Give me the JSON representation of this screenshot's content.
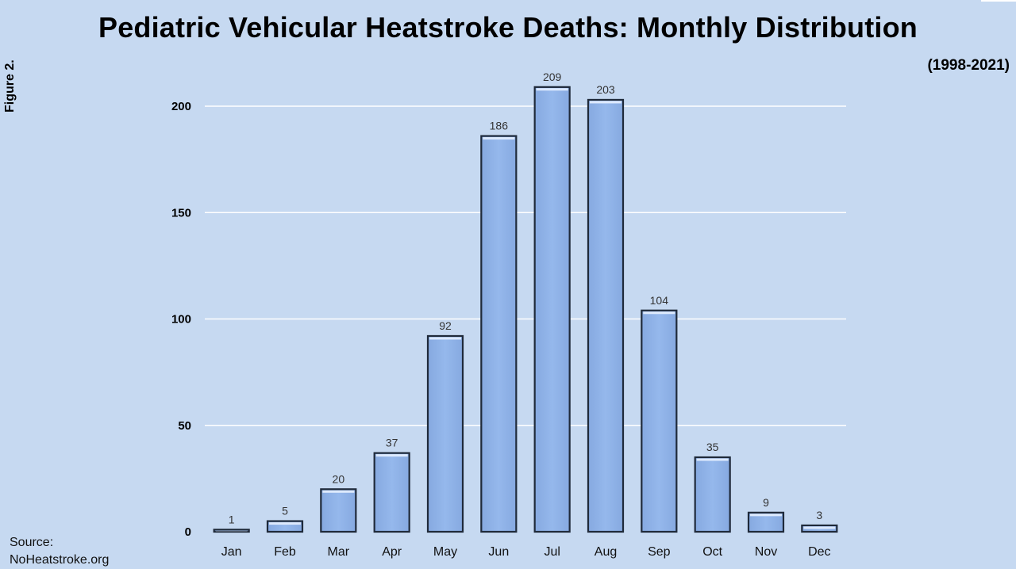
{
  "page": {
    "figure_label": "Figure 2.",
    "source_line1": "Source:",
    "source_line2": "NoHeatstroke.org"
  },
  "colors": {
    "background": "#c6d9f1",
    "bar_fill": "#95b8ec",
    "bar_stroke": "#1f2a3a",
    "gridline": "#ffffff"
  },
  "chart_data": {
    "type": "bar",
    "title": "Pediatric Vehicular Heatstroke Deaths: Monthly Distribution",
    "subtitle": "(1998-2021)",
    "xlabel": "",
    "ylabel": "",
    "categories": [
      "Jan",
      "Feb",
      "Mar",
      "Apr",
      "May",
      "Jun",
      "Jul",
      "Aug",
      "Sep",
      "Oct",
      "Nov",
      "Dec"
    ],
    "values": [
      1,
      5,
      20,
      37,
      92,
      186,
      209,
      203,
      104,
      35,
      9,
      3
    ],
    "ylim": [
      0,
      200
    ],
    "yticks": [
      0,
      50,
      100,
      150,
      200
    ],
    "grid": true,
    "legend": "none",
    "data_labels": true
  }
}
